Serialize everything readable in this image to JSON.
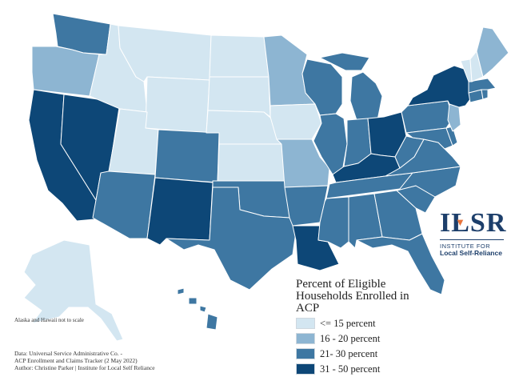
{
  "legend": {
    "title_lines": [
      "Percent of Eligible",
      "Households Enrolled in",
      "ACP"
    ],
    "items": [
      {
        "label": "<= 15 percent",
        "color": "#d3e6f1"
      },
      {
        "label": "16 - 20 percent",
        "color": "#8db5d2"
      },
      {
        "label": "21- 30 percent",
        "color": "#3e77a2"
      },
      {
        "label": "31 - 50 percent",
        "color": "#0d4777"
      }
    ]
  },
  "inset_note": "Alaska and Hawaii not to scale",
  "source_lines": [
    "Data: Universal Service Administrative Co. -",
    "ACP Enrollment and Claims Tracker (2 May 2022)",
    "Author: Christine Parker | Institute for Local Self Reliance"
  ],
  "logo": {
    "mark": "ILSR",
    "line1": "INSTITUTE FOR",
    "line2": "Local Self-Reliance"
  },
  "states": {
    "WA": "21-30",
    "OR": "16-20",
    "CA": "31-50",
    "NV": "31-50",
    "ID": "<=15",
    "MT": "<=15",
    "WY": "<=15",
    "UT": "<=15",
    "AZ": "21-30",
    "CO": "21-30",
    "NM": "31-50",
    "ND": "<=15",
    "SD": "<=15",
    "NE": "<=15",
    "KS": "<=15",
    "OK": "21-30",
    "TX": "21-30",
    "MN": "16-20",
    "IA": "<=15",
    "MO": "16-20",
    "AR": "21-30",
    "LA": "31-50",
    "WI": "21-30",
    "IL": "21-30",
    "MI": "21-30",
    "IN": "21-30",
    "OH": "31-50",
    "KY": "31-50",
    "TN": "21-30",
    "MS": "21-30",
    "AL": "21-30",
    "GA": "21-30",
    "FL": "21-30",
    "SC": "21-30",
    "NC": "21-30",
    "VA": "21-30",
    "WV": "21-30",
    "PA": "21-30",
    "NY": "31-50",
    "NJ": "16-20",
    "DE": "21-30",
    "MD": "21-30",
    "CT": "21-30",
    "RI": "21-30",
    "MA": "21-30",
    "VT": "<=15",
    "NH": "<=15",
    "ME": "16-20",
    "AK": "<=15",
    "HI": "21-30"
  }
}
